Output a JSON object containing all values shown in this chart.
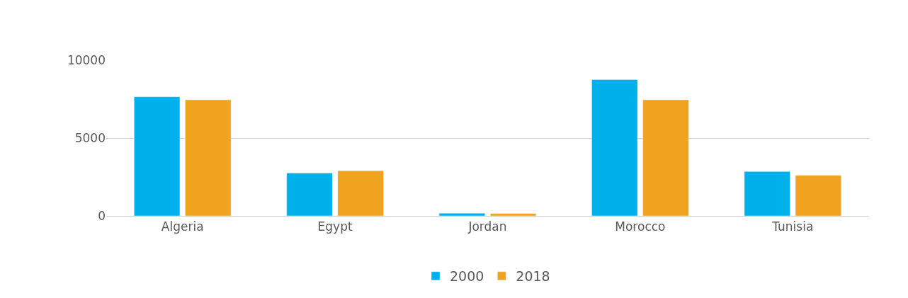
{
  "chart_data": {
    "type": "bar",
    "categories": [
      "Algeria",
      "Egypt",
      "Jordan",
      "Morocco",
      "Tunisia"
    ],
    "series": [
      {
        "name": "2000",
        "color": "#00b0ea",
        "values": [
          7650,
          2750,
          170,
          8750,
          2850
        ]
      },
      {
        "name": "2018",
        "color": "#f0a31e",
        "values": [
          7450,
          2900,
          150,
          7450,
          2600
        ]
      }
    ],
    "ylim": [
      0,
      10000
    ],
    "yticks": [
      0,
      5000,
      10000
    ],
    "grid": "y",
    "legend": "bottom"
  }
}
